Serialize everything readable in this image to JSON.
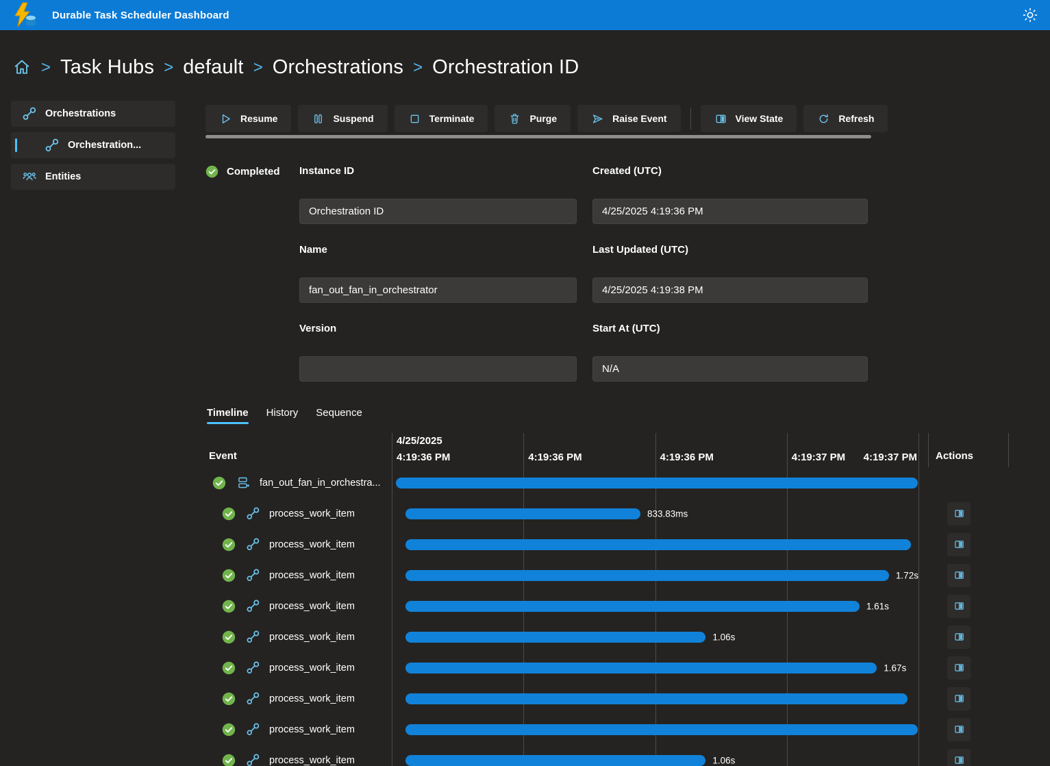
{
  "app": {
    "title": "Durable Task Scheduler Dashboard"
  },
  "breadcrumb": {
    "separator": ">",
    "items": [
      "Task Hubs",
      "default",
      "Orchestrations",
      "Orchestration ID"
    ]
  },
  "sidebar": {
    "items": [
      {
        "label": "Orchestrations",
        "icon": "link-icon",
        "selected": false
      },
      {
        "label": "Orchestration...",
        "icon": "link-icon",
        "selected": true
      },
      {
        "label": "Entities",
        "icon": "people-icon",
        "selected": false
      }
    ]
  },
  "toolbar": {
    "buttons": [
      {
        "label": "Resume",
        "icon": "play-icon"
      },
      {
        "label": "Suspend",
        "icon": "pause-icon"
      },
      {
        "label": "Terminate",
        "icon": "stop-icon"
      },
      {
        "label": "Purge",
        "icon": "trash-icon"
      },
      {
        "label": "Raise Event",
        "icon": "send-icon"
      },
      {
        "label": "View State",
        "icon": "split-panel-icon"
      },
      {
        "label": "Refresh",
        "icon": "refresh-icon"
      }
    ]
  },
  "details": {
    "status": "Completed",
    "instance_id": {
      "label": "Instance ID",
      "value": "Orchestration ID"
    },
    "created": {
      "label": "Created (UTC)",
      "value": "4/25/2025 4:19:36 PM"
    },
    "name": {
      "label": "Name",
      "value": "fan_out_fan_in_orchestrator"
    },
    "last_updated": {
      "label": "Last Updated (UTC)",
      "value": "4/25/2025 4:19:38 PM"
    },
    "version": {
      "label": "Version",
      "value": ""
    },
    "start_at": {
      "label": "Start At (UTC)",
      "value": "N/A"
    }
  },
  "tabs": {
    "items": [
      "Timeline",
      "History",
      "Sequence"
    ],
    "active": "Timeline"
  },
  "timeline": {
    "event_header": "Event",
    "actions_header": "Actions",
    "axis": [
      {
        "date": "4/25/2025",
        "time": "4:19:36 PM"
      },
      {
        "time": "4:19:36 PM"
      },
      {
        "time": "4:19:36 PM"
      },
      {
        "time": "4:19:37 PM"
      },
      {
        "time": "4:19:37 PM"
      }
    ],
    "rows": [
      {
        "name": "fan_out_fan_in_orchestra...",
        "icon": "orchestration-icon",
        "status": "completed",
        "duration_label": "",
        "bar_start_pct": 0.8,
        "bar_end_pct": 99.9,
        "has_action": false
      },
      {
        "name": "process_work_item",
        "icon": "link-icon",
        "status": "completed",
        "duration_label": "833.83ms",
        "bar_start_pct": 2.6,
        "bar_end_pct": 47.2,
        "has_action": true
      },
      {
        "name": "process_work_item",
        "icon": "link-icon",
        "status": "completed",
        "duration_label": "",
        "bar_start_pct": 2.6,
        "bar_end_pct": 98.6,
        "has_action": true
      },
      {
        "name": "process_work_item",
        "icon": "link-icon",
        "status": "completed",
        "duration_label": "1.72s",
        "bar_start_pct": 2.6,
        "bar_end_pct": 94.4,
        "has_action": true
      },
      {
        "name": "process_work_item",
        "icon": "link-icon",
        "status": "completed",
        "duration_label": "1.61s",
        "bar_start_pct": 2.6,
        "bar_end_pct": 88.8,
        "has_action": true
      },
      {
        "name": "process_work_item",
        "icon": "link-icon",
        "status": "completed",
        "duration_label": "1.06s",
        "bar_start_pct": 2.6,
        "bar_end_pct": 59.6,
        "has_action": true
      },
      {
        "name": "process_work_item",
        "icon": "link-icon",
        "status": "completed",
        "duration_label": "1.67s",
        "bar_start_pct": 2.6,
        "bar_end_pct": 92.1,
        "has_action": true
      },
      {
        "name": "process_work_item",
        "icon": "link-icon",
        "status": "completed",
        "duration_label": "",
        "bar_start_pct": 2.6,
        "bar_end_pct": 97.9,
        "has_action": true
      },
      {
        "name": "process_work_item",
        "icon": "link-icon",
        "status": "completed",
        "duration_label": "",
        "bar_start_pct": 2.6,
        "bar_end_pct": 99.9,
        "has_action": true
      },
      {
        "name": "process_work_item",
        "icon": "link-icon",
        "status": "completed",
        "duration_label": "1.06s",
        "bar_start_pct": 2.6,
        "bar_end_pct": 59.6,
        "has_action": true
      }
    ]
  },
  "colors": {
    "topbar_blue": "#0c7bd6",
    "accent_icon_blue": "#6cc5ee",
    "timeline_bar_blue": "#1182d9",
    "status_green": "#72b44c",
    "tab_underline_blue": "#4cc2ff"
  }
}
